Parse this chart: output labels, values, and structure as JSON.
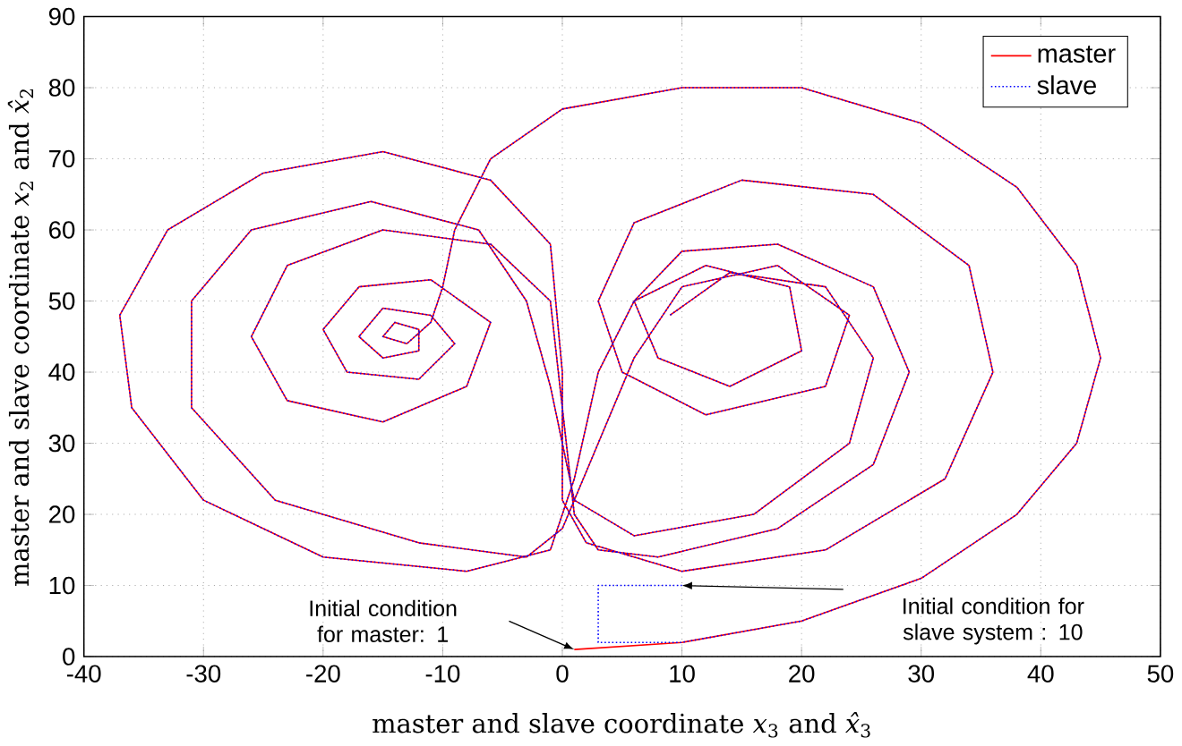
{
  "chart_data": {
    "type": "line",
    "xlabel": "master and slave coordinate *x*$_{3}$ and *x̂*$_{3}$",
    "ylabel": "master and slave coordinate *x*$_{2}$ and *x̂*$_{2}$",
    "xlim": [
      -40,
      50
    ],
    "ylim": [
      0,
      90
    ],
    "xticks": [
      -40,
      -30,
      -20,
      -10,
      0,
      10,
      20,
      30,
      40,
      50
    ],
    "yticks": [
      0,
      10,
      20,
      30,
      40,
      50,
      60,
      70,
      80,
      90
    ],
    "grid": true,
    "legend": "top right",
    "marker": "none",
    "annotations": [
      "Initial condition for master: 1",
      "Initial condition for slave system : 10"
    ],
    "series": [
      {
        "name": "master",
        "color": "#ff0000",
        "line_style": "solid",
        "x": [
          1,
          10,
          20,
          30,
          38,
          43,
          45,
          43,
          38,
          30,
          20,
          10,
          0,
          -6,
          -9,
          -10,
          -11,
          -13,
          -15,
          -14,
          -12,
          -12,
          -15,
          -17,
          -15,
          -11,
          -9,
          -12,
          -18,
          -20,
          -17,
          -11,
          -6,
          -8,
          -15,
          -23,
          -26,
          -23,
          -15,
          -6,
          -1,
          0,
          1,
          3,
          8,
          18,
          26,
          29,
          26,
          18,
          10,
          6,
          8,
          14,
          20,
          19,
          12,
          6,
          3,
          1,
          -1,
          -8,
          -20,
          -30,
          -36,
          -37,
          -33,
          -25,
          -15,
          -6,
          -1,
          0,
          0,
          2,
          10,
          22,
          32,
          36,
          34,
          26,
          15,
          6,
          3,
          5,
          12,
          22,
          24,
          18,
          10,
          6,
          3,
          0,
          -3,
          -12,
          -24,
          -31,
          -31,
          -26,
          -16,
          -7,
          -3,
          -1,
          1,
          6,
          16,
          24,
          26,
          22,
          14,
          9
        ],
        "values": [
          1,
          2,
          5,
          11,
          20,
          30,
          42,
          55,
          66,
          75,
          80,
          80,
          77,
          70,
          60,
          52,
          47,
          44,
          45,
          47,
          46,
          43,
          42,
          45,
          49,
          48,
          44,
          39,
          40,
          46,
          52,
          53,
          47,
          38,
          33,
          36,
          45,
          55,
          60,
          58,
          50,
          35,
          20,
          15,
          14,
          18,
          27,
          40,
          52,
          58,
          57,
          50,
          42,
          38,
          43,
          52,
          55,
          50,
          40,
          25,
          15,
          12,
          14,
          22,
          35,
          48,
          60,
          68,
          71,
          67,
          58,
          40,
          22,
          16,
          12,
          15,
          25,
          40,
          55,
          65,
          67,
          61,
          50,
          40,
          34,
          38,
          48,
          55,
          52,
          42,
          30,
          18,
          14,
          16,
          22,
          35,
          50,
          60,
          64,
          60,
          50,
          38,
          22,
          17,
          20,
          30,
          42,
          52,
          54,
          48
        ]
      },
      {
        "name": "slave",
        "color": "#0000ff",
        "line_style": "dotted",
        "x": [
          10,
          3,
          3,
          10,
          20,
          30,
          38,
          43,
          45,
          43,
          38,
          30,
          20,
          10,
          0,
          -6,
          -9,
          -10,
          -11,
          -13,
          -15,
          -14,
          -12,
          -12,
          -15,
          -17,
          -15,
          -11,
          -9,
          -12,
          -18,
          -20,
          -17,
          -11,
          -6,
          -8,
          -15,
          -23,
          -26,
          -23,
          -15,
          -6,
          -1,
          0,
          1,
          3,
          8,
          18,
          26,
          29,
          26,
          18,
          10,
          6,
          8,
          14,
          20,
          19,
          12,
          6,
          3,
          1,
          -1,
          -8,
          -20,
          -30,
          -36,
          -37,
          -33,
          -25,
          -15,
          -6,
          -1,
          0,
          0,
          2,
          10,
          22,
          32,
          36,
          34,
          26,
          15,
          6,
          3,
          5,
          12,
          22,
          24,
          18,
          10,
          6,
          3,
          0,
          -3,
          -12,
          -24,
          -31,
          -31,
          -26,
          -16,
          -7,
          -3,
          -1,
          1,
          6,
          16,
          24,
          26,
          22,
          14,
          9
        ],
        "values": [
          10,
          10,
          2,
          2,
          5,
          11,
          20,
          30,
          42,
          55,
          66,
          75,
          80,
          80,
          77,
          70,
          60,
          52,
          47,
          44,
          45,
          47,
          46,
          43,
          42,
          45,
          49,
          48,
          44,
          39,
          40,
          46,
          52,
          53,
          47,
          38,
          33,
          36,
          45,
          55,
          60,
          58,
          50,
          35,
          20,
          15,
          14,
          18,
          27,
          40,
          52,
          58,
          57,
          50,
          42,
          38,
          43,
          52,
          55,
          50,
          40,
          25,
          15,
          12,
          14,
          22,
          35,
          48,
          60,
          68,
          71,
          67,
          58,
          40,
          22,
          16,
          12,
          15,
          25,
          40,
          55,
          65,
          67,
          61,
          50,
          40,
          34,
          38,
          48,
          55,
          52,
          42,
          30,
          18,
          14,
          16,
          22,
          35,
          50,
          60,
          64,
          60,
          50,
          38,
          22,
          17,
          20,
          30,
          42,
          52,
          54,
          48
        ]
      }
    ]
  }
}
